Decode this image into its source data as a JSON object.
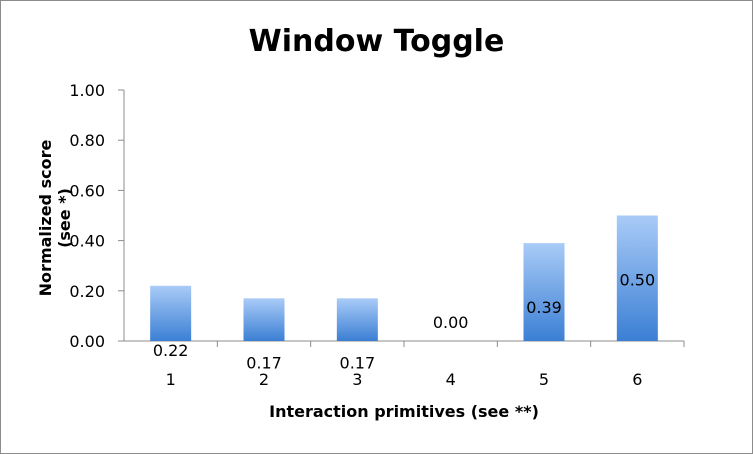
{
  "chart_data": {
    "type": "bar",
    "title": "Window Toggle",
    "xlabel": "Interaction primitives (see **)",
    "ylabel": "Normalized score (see *)",
    "categories": [
      "1",
      "2",
      "3",
      "4",
      "5",
      "6"
    ],
    "values": [
      0.22,
      0.17,
      0.17,
      0.0,
      0.39,
      0.5
    ],
    "data_labels": [
      "0.22",
      "0.17",
      "0.17",
      "0.00",
      "0.39",
      "0.50"
    ],
    "yticks": [
      0.0,
      0.2,
      0.4,
      0.6,
      0.8,
      1.0
    ],
    "ytick_labels": [
      "0.00",
      "0.20",
      "0.40",
      "0.60",
      "0.80",
      "1.00"
    ],
    "ylim": [
      0,
      1
    ],
    "grid": false,
    "legend": "none",
    "bar_color_top": "#a9cbf7",
    "bar_color_bottom": "#3b7fd4"
  }
}
